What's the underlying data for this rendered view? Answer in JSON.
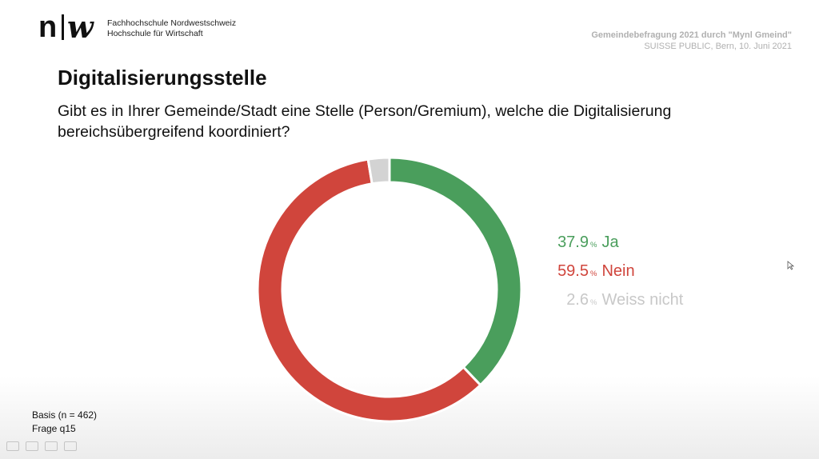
{
  "header": {
    "logo_text_n": "n",
    "logo_text_w": "w",
    "school_line1": "Fachhochschule Nordwestschweiz",
    "school_line2": "Hochschule für Wirtschaft",
    "event_line1": "Gemeindebefragung 2021 durch \"Mynl Gmeind\"",
    "event_line2": "SUISSE PUBLIC, Bern, 10. Juni 2021"
  },
  "slide": {
    "title": "Digitalisierungsstelle",
    "question": "Gibt es in Ihrer Gemeinde/Stadt eine Stelle (Person/Gremium), welche die Digitalisierung bereichsübergreifend koordiniert?",
    "basis": "Basis (n = 462)",
    "frage": "Frage q15"
  },
  "chart_data": {
    "type": "pie",
    "variant": "donut",
    "percent_symbol": "%",
    "categories": [
      "Ja",
      "Nein",
      "Weiss nicht"
    ],
    "values": [
      37.9,
      59.5,
      2.6
    ],
    "colors": [
      "#4a9e5c",
      "#d0453c",
      "#d3d3d3"
    ],
    "legend_placement": "right"
  }
}
